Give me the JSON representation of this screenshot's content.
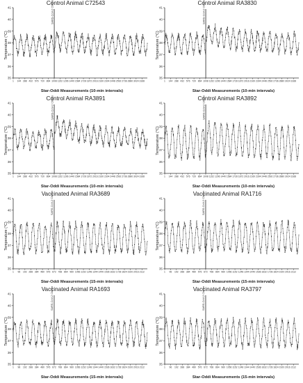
{
  "colors": {
    "line": "#1a1a1a",
    "axis": "#333333",
    "event_line": "#222222"
  },
  "chart_data": [
    {
      "type": "line",
      "title": "Control Animal C72543",
      "xlabel": "Star-Oddi Measurements (10-min intervals)",
      "ylabel": "Temperature (°C)",
      "ylim": [
        35,
        41
      ],
      "yticks": [
        "35",
        "36",
        "37",
        "38",
        "39",
        "40",
        "41"
      ],
      "xticks": [
        "1",
        "144",
        "288",
        "432",
        "576",
        "720",
        "864",
        "1008",
        "1152",
        "1296",
        "1440",
        "1584",
        "1728",
        "1872",
        "2016",
        "2160",
        "2304",
        "2448",
        "2592",
        "2736",
        "2880",
        "3024",
        "3168"
      ],
      "xmax": 3300,
      "challenge_x": 1010,
      "challenge_label": "SARS-CoV-2 Challenge",
      "cycles": 22,
      "base": 37.8,
      "amp": 0.75,
      "post_shift": 0.35
    },
    {
      "type": "line",
      "title": "Control Animal RA3830",
      "xlabel": "Star-Oddi Measurements (10-min intervals)",
      "ylabel": "Temperature (°C)",
      "ylim": [
        35,
        41
      ],
      "yticks": [
        "35",
        "36",
        "37",
        "38",
        "39",
        "40",
        "41"
      ],
      "xticks": [
        "1",
        "144",
        "288",
        "432",
        "576",
        "720",
        "864",
        "1008",
        "1152",
        "1296",
        "1440",
        "1584",
        "1728",
        "1872",
        "2016",
        "2160",
        "2304",
        "2448",
        "2592",
        "2736",
        "2880",
        "3024",
        "3168"
      ],
      "xmax": 3300,
      "challenge_x": 1010,
      "challenge_label": "SARS-CoV-2 Challenge",
      "cycles": 22,
      "base": 37.9,
      "amp": 0.8,
      "post_shift": 0.9
    },
    {
      "type": "line",
      "title": "Control Animal RA3891",
      "xlabel": "Star-Oddi Measurements (10-min intervals)",
      "ylabel": "Temperature (°C)",
      "ylim": [
        35,
        41
      ],
      "yticks": [
        "35",
        "36",
        "37",
        "38",
        "39",
        "40",
        "41"
      ],
      "xticks": [
        "1",
        "144",
        "288",
        "432",
        "576",
        "720",
        "864",
        "1008",
        "1152",
        "1296",
        "1440",
        "1584",
        "1728",
        "1872",
        "2016",
        "2160",
        "2304",
        "2448",
        "2592",
        "2736",
        "2880",
        "3024",
        "3168"
      ],
      "xmax": 3300,
      "challenge_x": 1010,
      "challenge_label": "SARS-CoV-2 Challenge",
      "cycles": 22,
      "base": 37.9,
      "amp": 0.7,
      "post_shift": 1.2
    },
    {
      "type": "line",
      "title": "Control Animal RA3892",
      "xlabel": "Star-Oddi Measurements (10-min intervals)",
      "ylabel": "Temperature (°C)",
      "ylim": [
        35,
        41
      ],
      "yticks": [
        "35",
        "36",
        "37",
        "38",
        "39",
        "40",
        "41"
      ],
      "xticks": [
        "1",
        "144",
        "288",
        "432",
        "576",
        "720",
        "864",
        "1008",
        "1152",
        "1296",
        "1440",
        "1584",
        "1728",
        "1872",
        "2016",
        "2160",
        "2304",
        "2448",
        "2592",
        "2736",
        "2880",
        "3024",
        "3168"
      ],
      "xmax": 3300,
      "challenge_x": 1010,
      "challenge_label": "SARS-CoV-2 Challenge",
      "cycles": 22,
      "base": 37.6,
      "amp": 1.3,
      "post_shift": 0.5
    },
    {
      "type": "line",
      "title": "Vaccinated Animal RA3689",
      "xlabel": "Star-Oddi Measurements (15-min intervals)",
      "ylabel": "Temperature (°C)",
      "ylim": [
        35,
        41
      ],
      "yticks": [
        "35",
        "36",
        "37",
        "38",
        "39",
        "40",
        "41"
      ],
      "xticks": [
        "1",
        "96",
        "192",
        "288",
        "384",
        "480",
        "576",
        "672",
        "768",
        "864",
        "960",
        "1056",
        "1152",
        "1248",
        "1344",
        "1440",
        "1536",
        "1632",
        "1728",
        "1824",
        "1920",
        "2016",
        "2112"
      ],
      "xmax": 2200,
      "challenge_x": 672,
      "challenge_label": "SARS-CoV-2 Challenge",
      "cycles": 22,
      "base": 37.6,
      "amp": 1.2,
      "post_shift": 0.1
    },
    {
      "type": "line",
      "title": "Vaccinated Animal RA1716",
      "xlabel": "Star-Oddi Measurements (15-min intervals)",
      "ylabel": "Temperature (°C)",
      "ylim": [
        35,
        41
      ],
      "yticks": [
        "35",
        "36",
        "37",
        "38",
        "39",
        "40",
        "41"
      ],
      "xticks": [
        "1",
        "96",
        "192",
        "288",
        "384",
        "480",
        "576",
        "672",
        "768",
        "864",
        "960",
        "1056",
        "1152",
        "1248",
        "1344",
        "1440",
        "1536",
        "1632",
        "1728",
        "1824",
        "1920",
        "2016",
        "2112"
      ],
      "xmax": 2200,
      "challenge_x": 672,
      "challenge_label": "SARS-CoV-2 Challenge",
      "cycles": 22,
      "base": 37.7,
      "amp": 1.2,
      "post_shift": 0.1
    },
    {
      "type": "line",
      "title": "Vaccinated Animal RA1693",
      "xlabel": "Star-Oddi Measurements (15-min intervals)",
      "ylabel": "Temperature (°C)",
      "ylim": [
        35,
        41
      ],
      "yticks": [
        "35",
        "36",
        "37",
        "38",
        "39",
        "40",
        "41"
      ],
      "xticks": [
        "1",
        "96",
        "192",
        "288",
        "384",
        "480",
        "576",
        "672",
        "768",
        "864",
        "960",
        "1056",
        "1152",
        "1248",
        "1344",
        "1440",
        "1536",
        "1632",
        "1728",
        "1824",
        "1920",
        "2016",
        "2112"
      ],
      "xmax": 2200,
      "challenge_x": 672,
      "challenge_label": "SARS-CoV-2 Challenge",
      "cycles": 22,
      "base": 37.6,
      "amp": 1.0,
      "post_shift": 0.1
    },
    {
      "type": "line",
      "title": "Vaccinated Animal RA3797",
      "xlabel": "Star-Oddi Measurements (15-min intervals)",
      "ylabel": "Temperature (°C)",
      "ylim": [
        35,
        41
      ],
      "yticks": [
        "35",
        "36",
        "37",
        "38",
        "39",
        "40",
        "41"
      ],
      "xticks": [
        "1",
        "96",
        "192",
        "288",
        "384",
        "480",
        "576",
        "672",
        "768",
        "864",
        "960",
        "1056",
        "1152",
        "1248",
        "1344",
        "1440",
        "1536",
        "1632",
        "1728",
        "1824",
        "1920",
        "2016",
        "2112"
      ],
      "xmax": 2200,
      "challenge_x": 672,
      "challenge_label": "SARS-CoV-2 Challenge",
      "cycles": 22,
      "base": 37.6,
      "amp": 1.1,
      "post_shift": 0.1
    }
  ]
}
